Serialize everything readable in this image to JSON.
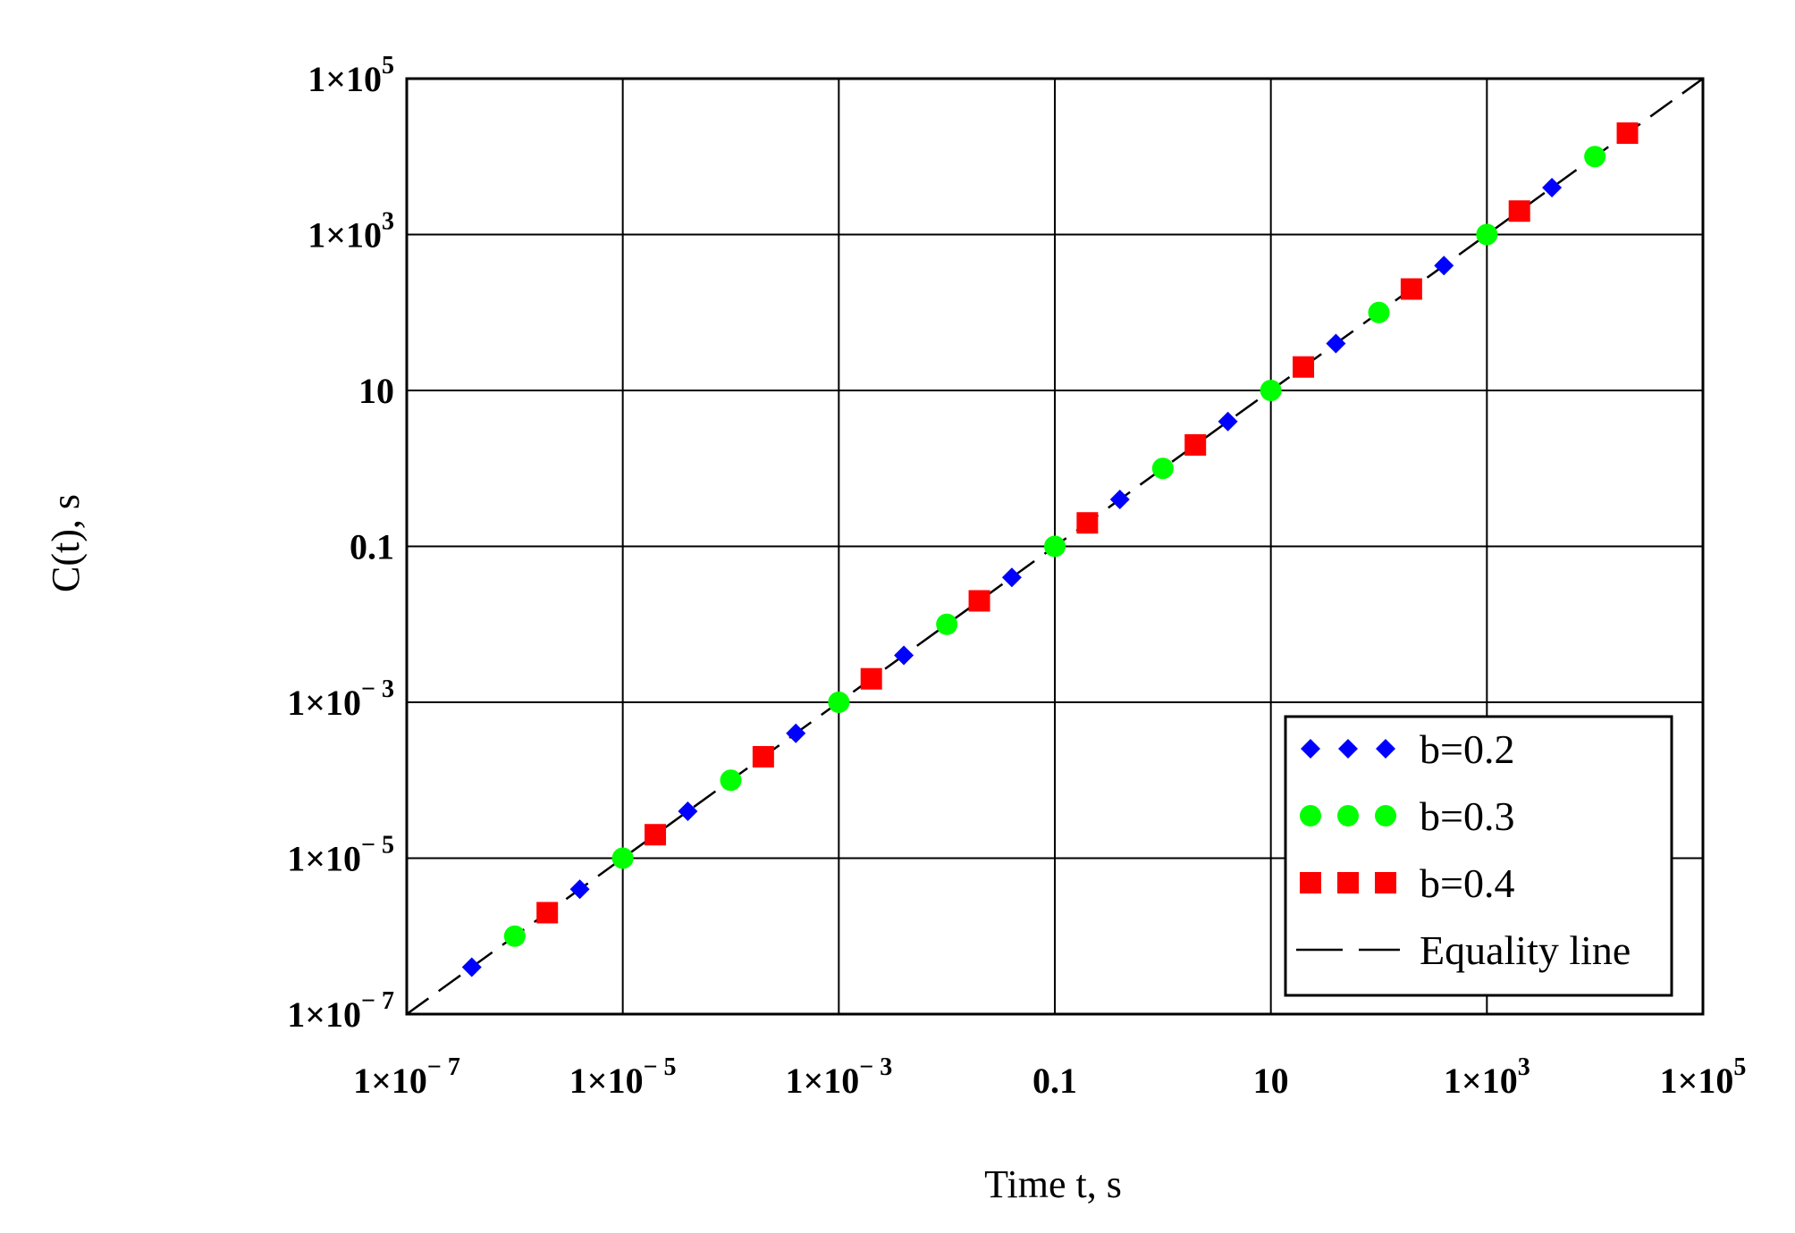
{
  "chart_data": {
    "type": "scatter",
    "xlabel": "Time t, s",
    "ylabel": "C(t), s",
    "xscale": "log",
    "yscale": "log",
    "xlim": [
      1e-07,
      100000.0
    ],
    "ylim": [
      1e-07,
      100000.0
    ],
    "grid": true,
    "legend_position": "bottom-right",
    "x_ticks": [
      {
        "value": 1e-07,
        "base": "1×10",
        "exp": "− 7"
      },
      {
        "value": 1e-05,
        "base": "1×10",
        "exp": "− 5"
      },
      {
        "value": 0.001,
        "base": "1×10",
        "exp": "− 3"
      },
      {
        "value": 0.1,
        "base": "0.1",
        "exp": ""
      },
      {
        "value": 10,
        "base": "10",
        "exp": ""
      },
      {
        "value": 1000.0,
        "base": "1×10",
        "exp": "3"
      },
      {
        "value": 100000.0,
        "base": "1×10",
        "exp": "5"
      }
    ],
    "y_ticks": [
      {
        "value": 1e-07,
        "base": "1×10",
        "exp": "− 7"
      },
      {
        "value": 1e-05,
        "base": "1×10",
        "exp": "− 5"
      },
      {
        "value": 0.001,
        "base": "1×10",
        "exp": "− 3"
      },
      {
        "value": 0.1,
        "base": "0.1",
        "exp": ""
      },
      {
        "value": 10,
        "base": "10",
        "exp": ""
      },
      {
        "value": 1000.0,
        "base": "1×10",
        "exp": "3"
      },
      {
        "value": 100000.0,
        "base": "1×10",
        "exp": "5"
      }
    ],
    "series": [
      {
        "name": "b=0.2",
        "marker": "diamond",
        "color": "#0000ff",
        "points": [
          [
            4e-07,
            4e-07
          ],
          [
            4e-06,
            4e-06
          ],
          [
            4e-05,
            4e-05
          ],
          [
            0.0004,
            0.0004
          ],
          [
            0.004,
            0.004
          ],
          [
            0.04,
            0.04
          ],
          [
            0.4,
            0.4
          ],
          [
            4,
            4
          ],
          [
            40,
            40
          ],
          [
            400,
            400
          ],
          [
            4000,
            4000
          ]
        ]
      },
      {
        "name": "b=0.3",
        "marker": "circle",
        "color": "#00ff00",
        "points": [
          [
            1e-06,
            1e-06
          ],
          [
            1e-05,
            1e-05
          ],
          [
            0.0001,
            0.0001
          ],
          [
            0.001,
            0.001
          ],
          [
            0.01,
            0.01
          ],
          [
            0.1,
            0.1
          ],
          [
            1,
            1
          ],
          [
            10,
            10
          ],
          [
            100,
            100
          ],
          [
            1000,
            1000
          ],
          [
            10000,
            10000
          ]
        ]
      },
      {
        "name": "b=0.4",
        "marker": "square",
        "color": "#ff0000",
        "points": [
          [
            2e-06,
            2e-06
          ],
          [
            2e-05,
            2e-05
          ],
          [
            0.0002,
            0.0002
          ],
          [
            0.002,
            0.002
          ],
          [
            0.02,
            0.02
          ],
          [
            0.2,
            0.2
          ],
          [
            2,
            2
          ],
          [
            20,
            20
          ],
          [
            200,
            200
          ],
          [
            2000,
            2000
          ],
          [
            20000,
            20000
          ]
        ]
      },
      {
        "name": "Equality line",
        "marker": "dashed-line",
        "color": "#000000",
        "points": [
          [
            1e-07,
            1e-07
          ],
          [
            100000.0,
            100000.0
          ]
        ]
      }
    ]
  }
}
